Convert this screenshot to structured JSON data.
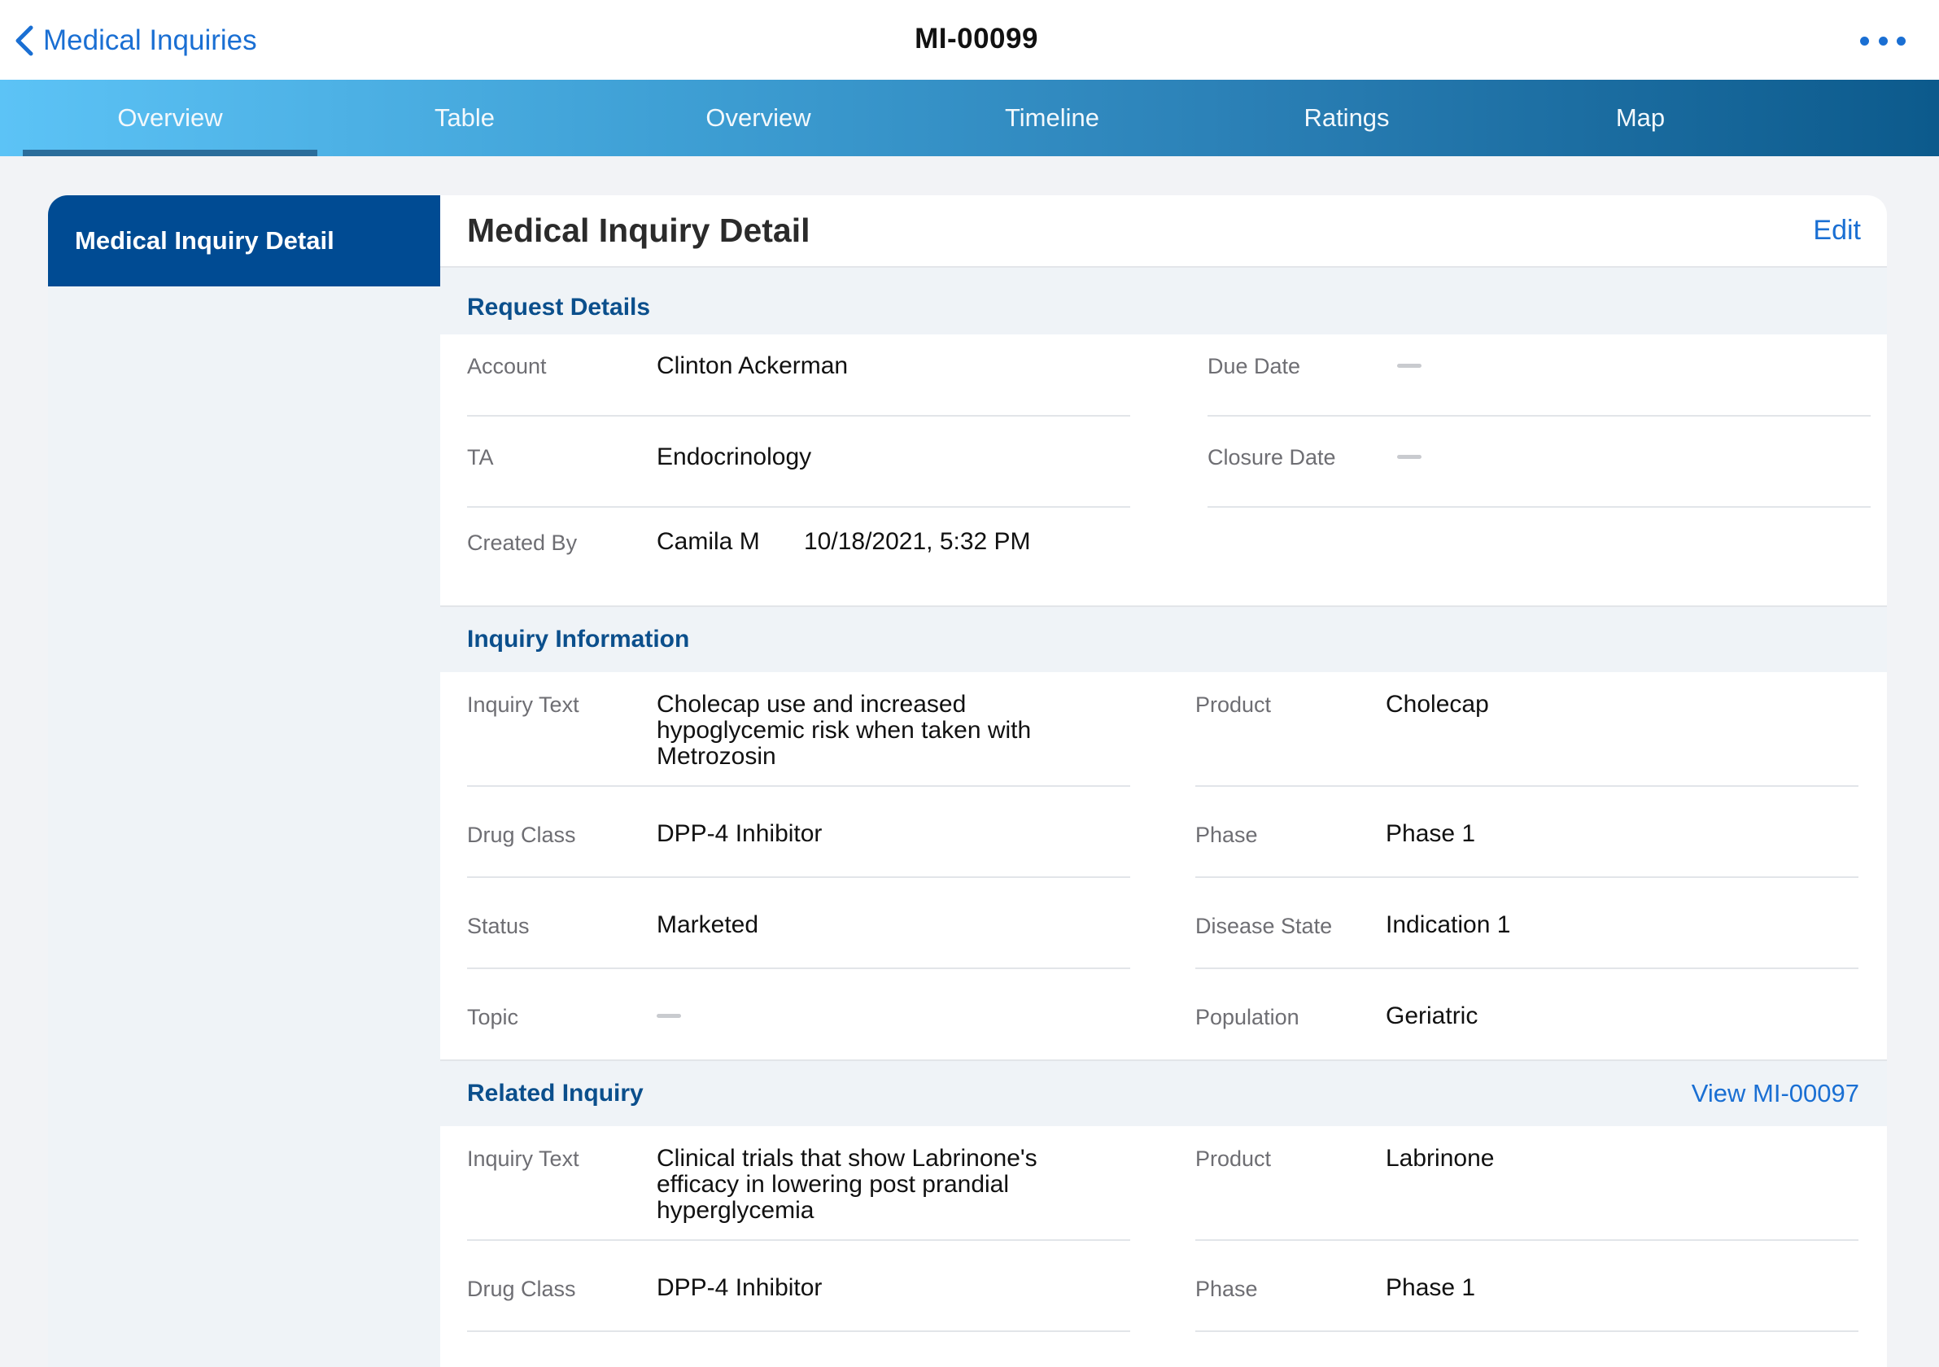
{
  "nav": {
    "back_label": "Medical Inquiries",
    "title": "MI-00099"
  },
  "tabs": [
    {
      "label": "Overview",
      "active": true
    },
    {
      "label": "Table",
      "active": false
    },
    {
      "label": "Overview",
      "active": false
    },
    {
      "label": "Timeline",
      "active": false
    },
    {
      "label": "Ratings",
      "active": false
    },
    {
      "label": "Map",
      "active": false
    }
  ],
  "sidebar": {
    "items": [
      {
        "label": "Medical Inquiry Detail",
        "selected": true
      }
    ]
  },
  "card": {
    "title": "Medical Inquiry Detail",
    "edit_label": "Edit"
  },
  "request_details": {
    "title": "Request Details",
    "account_label": "Account",
    "account_value": "Clinton Ackerman",
    "due_date_label": "Due Date",
    "ta_label": "TA",
    "ta_value": "Endocrinology",
    "closure_date_label": "Closure Date",
    "created_by_label": "Created By",
    "created_by_value": "Camila M",
    "created_date": "10/18/2021, 5:32 PM"
  },
  "inquiry_info": {
    "title": "Inquiry Information",
    "inquiry_text_label": "Inquiry Text",
    "inquiry_text_lines": [
      "Cholecap use and increased",
      "hypoglycemic risk when taken with",
      "Metrozosin"
    ],
    "product_label": "Product",
    "product_value": "Cholecap",
    "drug_class_label": "Drug Class",
    "drug_class_value": "DPP-4 Inhibitor",
    "phase_label": "Phase",
    "phase_value": "Phase 1",
    "status_label": "Status",
    "status_value": "Marketed",
    "disease_state_label": "Disease State",
    "disease_state_value": "Indication 1",
    "topic_label": "Topic",
    "population_label": "Population",
    "population_value": "Geriatric"
  },
  "related_inquiry": {
    "title": "Related Inquiry",
    "view_link": "View MI-00097",
    "inquiry_text_label": "Inquiry Text",
    "inquiry_text_lines": [
      "Clinical trials that show Labrinone's",
      "efficacy in lowering post prandial",
      "hyperglycemia"
    ],
    "product_label": "Product",
    "product_value": "Labrinone",
    "drug_class_label": "Drug Class",
    "drug_class_value": "DPP-4 Inhibitor",
    "phase_label": "Phase",
    "phase_value": "Phase 1"
  },
  "colors": {
    "accent": "#1a6fd3",
    "section_title": "#0b4f8c",
    "sidebar_selected": "#004b93"
  }
}
